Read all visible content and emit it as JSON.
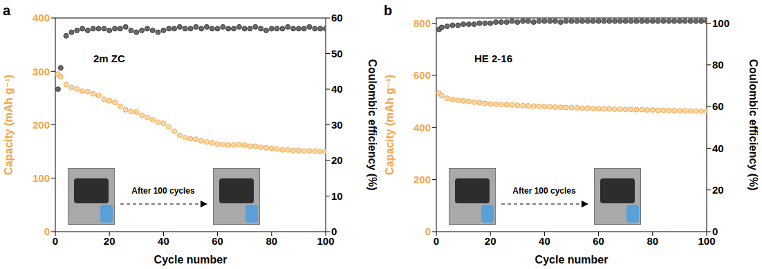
{
  "chart_data": [
    {
      "type": "line",
      "panel": "a",
      "annotation": "2m ZC",
      "inset_text": "After 100 cycles",
      "xlabel": "Cycle number",
      "ylabel": "Capacity (mAh g⁻¹)",
      "y2label": "Coulombic efficiency (%)",
      "x": [
        1,
        2,
        4,
        6,
        8,
        10,
        12,
        14,
        16,
        18,
        20,
        22,
        24,
        26,
        28,
        30,
        32,
        34,
        36,
        38,
        40,
        42,
        44,
        46,
        48,
        50,
        52,
        54,
        56,
        58,
        60,
        62,
        64,
        66,
        68,
        70,
        72,
        74,
        76,
        78,
        80,
        82,
        84,
        86,
        88,
        90,
        92,
        94,
        96,
        98,
        100
      ],
      "xlim": [
        0,
        100
      ],
      "xticks": [
        0,
        20,
        40,
        60,
        80,
        100
      ],
      "ylim": [
        0,
        400
      ],
      "yticks": [
        0,
        100,
        200,
        300,
        400
      ],
      "y2lim": [
        0,
        60
      ],
      "y2ticks": [
        0,
        10,
        20,
        30,
        40,
        50,
        60
      ],
      "series": [
        {
          "color": "#f5a54a",
          "axis": "y",
          "marker": "circle",
          "line_style": "none",
          "values": [
            295,
            290,
            275,
            270,
            267,
            263,
            262,
            258,
            255,
            248,
            245,
            242,
            235,
            228,
            225,
            224,
            218,
            214,
            210,
            205,
            203,
            196,
            188,
            180,
            176,
            174,
            173,
            170,
            168,
            166,
            164,
            163,
            162,
            162,
            163,
            162,
            160,
            160,
            158,
            157,
            156,
            155,
            153,
            153,
            152,
            152,
            151,
            151,
            151,
            150,
            150
          ]
        },
        {
          "color": "#3a3a3a",
          "axis": "y2",
          "marker": "circle",
          "line_style": "none",
          "values": [
            40,
            46,
            55,
            56,
            56.5,
            57,
            56.5,
            57,
            57,
            57,
            56.5,
            57,
            57,
            57.5,
            56.5,
            56,
            56.5,
            57,
            56.5,
            56,
            56.5,
            57,
            57,
            57.5,
            57,
            57,
            57.5,
            57,
            57.5,
            57,
            57,
            57.5,
            57,
            57,
            57.5,
            57,
            57,
            57.5,
            57,
            56.5,
            57,
            57,
            57,
            57.5,
            57,
            57,
            57,
            57.5,
            57,
            57,
            57
          ]
        }
      ]
    },
    {
      "type": "line",
      "panel": "b",
      "annotation": "HE 2-16",
      "inset_text": "After 100 cycles",
      "xlabel": "Cycle number",
      "ylabel": "Capacity (mAh g⁻¹)",
      "y2label": "Coulombic efficiency (%)",
      "x": [
        1,
        2,
        4,
        6,
        8,
        10,
        12,
        14,
        16,
        18,
        20,
        22,
        24,
        26,
        28,
        30,
        32,
        34,
        36,
        38,
        40,
        42,
        44,
        46,
        48,
        50,
        52,
        54,
        56,
        58,
        60,
        62,
        64,
        66,
        68,
        70,
        72,
        74,
        76,
        78,
        80,
        82,
        84,
        86,
        88,
        90,
        92,
        94,
        96,
        98,
        100
      ],
      "xlim": [
        0,
        100
      ],
      "xticks": [
        0,
        20,
        40,
        60,
        80,
        100
      ],
      "ylim": [
        0,
        820
      ],
      "yticks": [
        0,
        200,
        400,
        600,
        800
      ],
      "y2lim": [
        0,
        102.5
      ],
      "y2ticks": [
        0,
        20,
        40,
        60,
        80,
        100
      ],
      "series": [
        {
          "color": "#f5a54a",
          "axis": "y",
          "marker": "circle",
          "line_style": "none",
          "values": [
            532,
            522,
            512,
            507,
            504,
            502,
            500,
            497,
            495,
            492,
            490,
            489,
            488,
            487,
            486,
            485,
            484,
            483,
            482,
            481,
            480,
            479,
            478,
            477,
            476,
            476,
            475,
            474,
            474,
            473,
            472,
            471,
            471,
            470,
            470,
            469,
            469,
            468,
            468,
            467,
            467,
            466,
            466,
            465,
            465,
            464,
            464,
            463,
            463,
            462,
            462
          ]
        },
        {
          "color": "#3a3a3a",
          "axis": "y2",
          "marker": "circle",
          "line_style": "none",
          "values": [
            97,
            98,
            98.5,
            99,
            99,
            99.5,
            99.5,
            99.5,
            100,
            100,
            100,
            100.5,
            100.5,
            100.5,
            101,
            100.5,
            101,
            101,
            100.5,
            101,
            101,
            101,
            101,
            100.5,
            101,
            101,
            101,
            101,
            101,
            101,
            101,
            101,
            101,
            101,
            101,
            101,
            101,
            101,
            101,
            101,
            101,
            101,
            101,
            101,
            101,
            101,
            101,
            101,
            101,
            101,
            101
          ]
        }
      ]
    }
  ]
}
